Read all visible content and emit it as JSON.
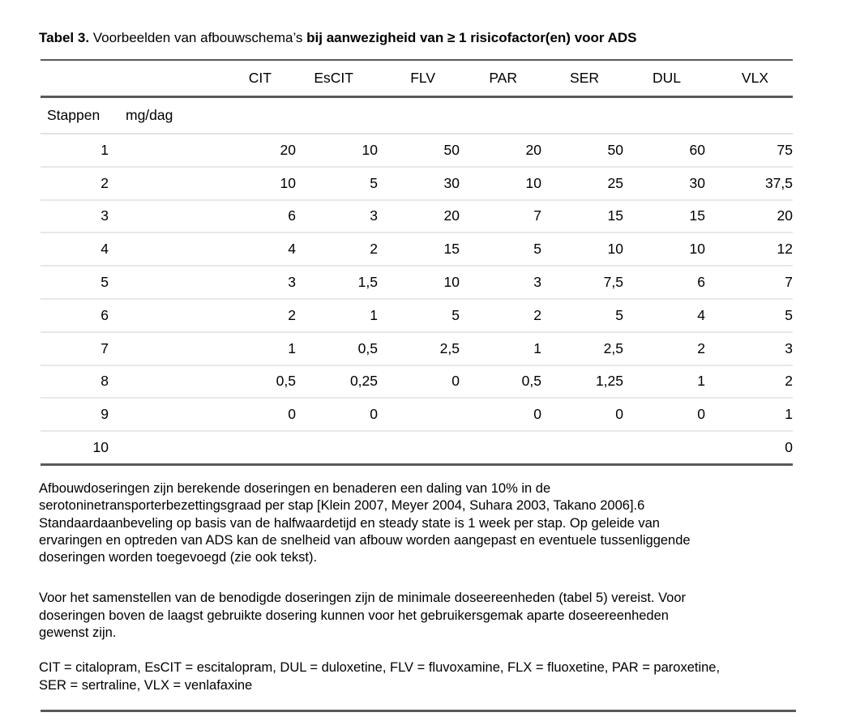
{
  "title": {
    "label": "Tabel 3.",
    "regular": "Voorbeelden van afbouwschema’s",
    "bold": "bij aanwezigheid van ≥ 1 risicofactor(en) voor ADS"
  },
  "table": {
    "drug_columns": [
      "CIT",
      "EsCIT",
      "FLV",
      "PAR",
      "SER",
      "DUL",
      "VLX"
    ],
    "subheader": {
      "col1": "Stappen",
      "col2": "mg/dag"
    },
    "rows": [
      {
        "step": "1",
        "values": [
          "20",
          "10",
          "50",
          "20",
          "50",
          "60",
          "75"
        ]
      },
      {
        "step": "2",
        "values": [
          "10",
          "5",
          "30",
          "10",
          "25",
          "30",
          "37,5"
        ]
      },
      {
        "step": "3",
        "values": [
          "6",
          "3",
          "20",
          "7",
          "15",
          "15",
          "20"
        ]
      },
      {
        "step": "4",
        "values": [
          "4",
          "2",
          "15",
          "5",
          "10",
          "10",
          "12"
        ]
      },
      {
        "step": "5",
        "values": [
          "3",
          "1,5",
          "10",
          "3",
          "7,5",
          "6",
          "7"
        ]
      },
      {
        "step": "6",
        "values": [
          "2",
          "1",
          "5",
          "2",
          "5",
          "4",
          "5"
        ]
      },
      {
        "step": "7",
        "values": [
          "1",
          "0,5",
          "2,5",
          "1",
          "2,5",
          "2",
          "3"
        ]
      },
      {
        "step": "8",
        "values": [
          "0,5",
          "0,25",
          "0",
          "0,5",
          "1,25",
          "1",
          "2"
        ]
      },
      {
        "step": "9",
        "values": [
          "0",
          "0",
          "",
          "0",
          "0",
          "0",
          "1"
        ]
      },
      {
        "step": "10",
        "values": [
          "",
          "",
          "",
          "",
          "",
          "",
          "0"
        ]
      }
    ]
  },
  "footnotes": {
    "para1_lines": [
      "Afbouwdoseringen zijn berekende doseringen en benaderen een daling van 10% in de",
      "serotoninetransporterbezettingsgraad per stap [Klein 2007, Meyer 2004, Suhara 2003, Takano 2006].6",
      "Standaardaanbeveling op basis van de halfwaardetijd en steady state is 1 week per stap. Op geleide van",
      "ervaringen en optreden van ADS kan de snelheid van afbouw worden aangepast en eventuele tussenliggende",
      "doseringen worden toegevoegd (zie ook tekst)."
    ],
    "para2_lines": [
      "Voor het samenstellen van de benodigde doseringen zijn de minimale doseereenheden (tabel 5) vereist. Voor",
      "doseringen boven de laagst gebruikte dosering kunnen voor het gebruikersgemak aparte doseereenheden",
      "gewenst zijn."
    ],
    "para3_lines": [
      "CIT = citalopram, EsCIT = escitalopram, DUL = duloxetine, FLV = fluvoxamine, FLX = fluoxetine, PAR = paroxetine,",
      "SER = sertraline, VLX = venlafaxine"
    ]
  }
}
